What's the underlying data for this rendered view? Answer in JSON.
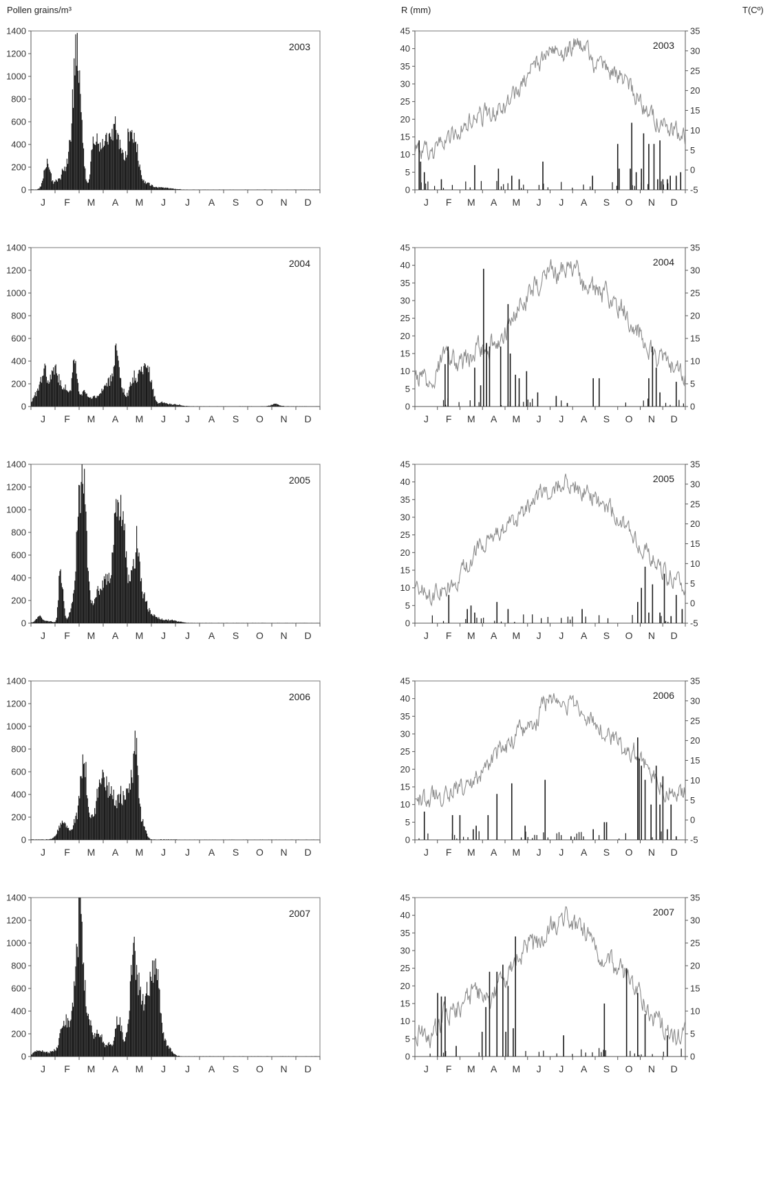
{
  "headers": {
    "pollen_axis": "Pollen grains/m³",
    "rain_axis": "R (mm)",
    "temp_axis": "T(Cº)"
  },
  "colors": {
    "bars": "#1a1a1a",
    "temperature_line": "#8c8c8c",
    "axis": "#555555"
  },
  "chart_data": [
    {
      "type": "bar",
      "panel": "pollen",
      "year": "2003",
      "ylabel": "Pollen grains/m³",
      "ylim": [
        0,
        1400
      ],
      "yticks": [
        0,
        200,
        400,
        600,
        800,
        1000,
        1200,
        1400
      ],
      "months": [
        "J",
        "F",
        "M",
        "A",
        "M",
        "J",
        "J",
        "A",
        "S",
        "O",
        "N",
        "D"
      ],
      "peaks": [
        {
          "day": 20,
          "value": 300,
          "width": 4
        },
        {
          "day": 32,
          "value": 90,
          "width": 3
        },
        {
          "day": 40,
          "value": 180,
          "width": 3
        },
        {
          "day": 50,
          "value": 500,
          "width": 4
        },
        {
          "day": 56,
          "value": 1050,
          "width": 3
        },
        {
          "day": 60,
          "value": 780,
          "width": 3
        },
        {
          "day": 64,
          "value": 400,
          "width": 3
        },
        {
          "day": 80,
          "value": 580,
          "width": 4
        },
        {
          "day": 88,
          "value": 350,
          "width": 3
        },
        {
          "day": 96,
          "value": 490,
          "width": 4
        },
        {
          "day": 106,
          "value": 640,
          "width": 4
        },
        {
          "day": 114,
          "value": 300,
          "width": 3
        },
        {
          "day": 124,
          "value": 580,
          "width": 4
        },
        {
          "day": 132,
          "value": 380,
          "width": 4
        },
        {
          "day": 142,
          "value": 70,
          "width": 8
        },
        {
          "day": 165,
          "value": 20,
          "width": 12
        }
      ]
    },
    {
      "type": "bar",
      "panel": "pollen",
      "year": "2004",
      "ylabel": "Pollen grains/m³",
      "ylim": [
        0,
        1400
      ],
      "yticks": [
        0,
        200,
        400,
        600,
        800,
        1000,
        1200,
        1400
      ],
      "months": [
        "J",
        "F",
        "M",
        "A",
        "M",
        "J",
        "J",
        "A",
        "S",
        "O",
        "N",
        "D"
      ],
      "peaks": [
        {
          "day": 6,
          "value": 120,
          "width": 4
        },
        {
          "day": 16,
          "value": 360,
          "width": 4
        },
        {
          "day": 30,
          "value": 390,
          "width": 6
        },
        {
          "day": 44,
          "value": 180,
          "width": 4
        },
        {
          "day": 55,
          "value": 510,
          "width": 3
        },
        {
          "day": 66,
          "value": 150,
          "width": 5
        },
        {
          "day": 78,
          "value": 80,
          "width": 4
        },
        {
          "day": 90,
          "value": 150,
          "width": 5
        },
        {
          "day": 100,
          "value": 240,
          "width": 5
        },
        {
          "day": 108,
          "value": 620,
          "width": 3
        },
        {
          "day": 116,
          "value": 150,
          "width": 4
        },
        {
          "day": 128,
          "value": 250,
          "width": 4
        },
        {
          "day": 140,
          "value": 380,
          "width": 6
        },
        {
          "day": 150,
          "value": 230,
          "width": 4
        },
        {
          "day": 165,
          "value": 40,
          "width": 5
        },
        {
          "day": 180,
          "value": 20,
          "width": 8
        },
        {
          "day": 308,
          "value": 25,
          "width": 5
        }
      ]
    },
    {
      "type": "bar",
      "panel": "pollen",
      "year": "2005",
      "ylabel": "Pollen grains/m³",
      "ylim": [
        0,
        1400
      ],
      "yticks": [
        0,
        200,
        400,
        600,
        800,
        1000,
        1200,
        1400
      ],
      "months": [
        "J",
        "F",
        "M",
        "A",
        "M",
        "J",
        "J",
        "A",
        "S",
        "O",
        "N",
        "D"
      ],
      "peaks": [
        {
          "day": 10,
          "value": 70,
          "width": 4
        },
        {
          "day": 22,
          "value": 20,
          "width": 4
        },
        {
          "day": 36,
          "value": 480,
          "width": 2
        },
        {
          "day": 40,
          "value": 250,
          "width": 2
        },
        {
          "day": 50,
          "value": 120,
          "width": 3
        },
        {
          "day": 60,
          "value": 1050,
          "width": 4
        },
        {
          "day": 66,
          "value": 1260,
          "width": 3
        },
        {
          "day": 72,
          "value": 300,
          "width": 4
        },
        {
          "day": 84,
          "value": 280,
          "width": 4
        },
        {
          "day": 92,
          "value": 380,
          "width": 4
        },
        {
          "day": 100,
          "value": 320,
          "width": 4
        },
        {
          "day": 108,
          "value": 1320,
          "width": 4
        },
        {
          "day": 116,
          "value": 960,
          "width": 3
        },
        {
          "day": 122,
          "value": 300,
          "width": 3
        },
        {
          "day": 128,
          "value": 390,
          "width": 3
        },
        {
          "day": 134,
          "value": 800,
          "width": 3
        },
        {
          "day": 142,
          "value": 250,
          "width": 4
        },
        {
          "day": 152,
          "value": 80,
          "width": 8
        },
        {
          "day": 175,
          "value": 30,
          "width": 10
        }
      ]
    },
    {
      "type": "bar",
      "panel": "pollen",
      "year": "2006",
      "ylabel": "Pollen grains/m³",
      "ylim": [
        0,
        1400
      ],
      "yticks": [
        0,
        200,
        400,
        600,
        800,
        1000,
        1200,
        1400
      ],
      "months": [
        "J",
        "F",
        "M",
        "A",
        "M",
        "J",
        "J",
        "A",
        "S",
        "O",
        "N",
        "D"
      ],
      "peaks": [
        {
          "day": 40,
          "value": 180,
          "width": 6
        },
        {
          "day": 56,
          "value": 180,
          "width": 4
        },
        {
          "day": 66,
          "value": 860,
          "width": 4
        },
        {
          "day": 76,
          "value": 200,
          "width": 4
        },
        {
          "day": 86,
          "value": 500,
          "width": 4
        },
        {
          "day": 94,
          "value": 450,
          "width": 5
        },
        {
          "day": 104,
          "value": 400,
          "width": 5
        },
        {
          "day": 114,
          "value": 390,
          "width": 4
        },
        {
          "day": 124,
          "value": 600,
          "width": 4
        },
        {
          "day": 132,
          "value": 940,
          "width": 3
        },
        {
          "day": 140,
          "value": 180,
          "width": 4
        }
      ]
    },
    {
      "type": "bar",
      "panel": "pollen",
      "year": "2007",
      "ylabel": "Pollen grains/m³",
      "ylim": [
        0,
        1400
      ],
      "yticks": [
        0,
        200,
        400,
        600,
        800,
        1000,
        1200,
        1400
      ],
      "months": [
        "J",
        "F",
        "M",
        "A",
        "M",
        "J",
        "J",
        "A",
        "S",
        "O",
        "N",
        "D"
      ],
      "peaks": [
        {
          "day": 6,
          "value": 60,
          "width": 4
        },
        {
          "day": 16,
          "value": 50,
          "width": 4
        },
        {
          "day": 28,
          "value": 60,
          "width": 4
        },
        {
          "day": 40,
          "value": 350,
          "width": 4
        },
        {
          "day": 46,
          "value": 220,
          "width": 3
        },
        {
          "day": 56,
          "value": 780,
          "width": 4
        },
        {
          "day": 62,
          "value": 1170,
          "width": 3
        },
        {
          "day": 68,
          "value": 500,
          "width": 4
        },
        {
          "day": 76,
          "value": 220,
          "width": 4
        },
        {
          "day": 86,
          "value": 250,
          "width": 4
        },
        {
          "day": 98,
          "value": 120,
          "width": 4
        },
        {
          "day": 110,
          "value": 400,
          "width": 4
        },
        {
          "day": 122,
          "value": 220,
          "width": 4
        },
        {
          "day": 128,
          "value": 880,
          "width": 3
        },
        {
          "day": 134,
          "value": 700,
          "width": 4
        },
        {
          "day": 142,
          "value": 300,
          "width": 4
        },
        {
          "day": 152,
          "value": 840,
          "width": 6
        },
        {
          "day": 160,
          "value": 400,
          "width": 4
        },
        {
          "day": 170,
          "value": 120,
          "width": 6
        }
      ]
    },
    {
      "type": "bar",
      "panel": "weather",
      "year": "2003",
      "ylabel": "R (mm)",
      "ylim": [
        0,
        45
      ],
      "yticks": [
        0,
        5,
        10,
        15,
        20,
        25,
        30,
        35,
        40,
        45
      ],
      "y2label": "T(Cº)",
      "y2lim": [
        -5,
        35
      ],
      "y2ticks": [
        -5,
        0,
        5,
        10,
        15,
        20,
        25,
        30,
        35
      ],
      "months": [
        "J",
        "F",
        "M",
        "A",
        "M",
        "J",
        "J",
        "A",
        "S",
        "O",
        "N",
        "D"
      ],
      "rain_days": [
        5,
        7,
        12,
        35,
        80,
        112,
        130,
        140,
        172,
        239,
        273,
        275,
        290,
        292,
        298,
        305,
        308,
        315,
        322,
        327,
        330,
        334,
        340,
        344,
        352,
        358
      ],
      "rain_values": [
        14,
        8,
        5,
        3,
        7,
        6,
        4,
        3,
        8,
        4,
        13,
        6,
        6,
        19,
        5,
        6,
        16,
        13,
        13,
        3,
        14,
        3,
        3,
        4,
        4,
        5
      ],
      "temp_anchor_days": [
        0,
        20,
        40,
        60,
        80,
        100,
        120,
        140,
        160,
        180,
        200,
        215,
        225,
        240,
        260,
        280,
        300,
        320,
        340,
        364
      ],
      "temp_anchor_values": [
        6,
        3,
        8,
        10,
        13,
        14,
        16,
        20,
        26,
        30,
        29,
        32,
        31,
        27,
        25,
        23,
        18,
        14,
        11,
        8
      ]
    },
    {
      "type": "bar",
      "panel": "weather",
      "year": "2004",
      "ylabel": "R (mm)",
      "ylim": [
        0,
        45
      ],
      "yticks": [
        0,
        5,
        10,
        15,
        20,
        25,
        30,
        35,
        40,
        45
      ],
      "y2label": "T(Cº)",
      "y2lim": [
        0,
        35
      ],
      "y2ticks": [
        0,
        5,
        10,
        15,
        20,
        25,
        30,
        35
      ],
      "months": [
        "J",
        "F",
        "M",
        "A",
        "M",
        "J",
        "J",
        "A",
        "S",
        "O",
        "N",
        "D"
      ],
      "rain_days": [
        40,
        44,
        80,
        88,
        92,
        96,
        100,
        115,
        125,
        128,
        135,
        140,
        150,
        165,
        190,
        205,
        240,
        248,
        315,
        320,
        325,
        330,
        352
      ],
      "rain_values": [
        12,
        17,
        11,
        6,
        39,
        18,
        17,
        17,
        29,
        15,
        9,
        8,
        10,
        4,
        3,
        1,
        8,
        8,
        8,
        17,
        11,
        4,
        7
      ],
      "temp_anchor_days": [
        0,
        20,
        40,
        60,
        80,
        100,
        120,
        140,
        160,
        180,
        200,
        215,
        225,
        240,
        260,
        280,
        300,
        320,
        340,
        364
      ],
      "temp_anchor_values": [
        8,
        5,
        11,
        9,
        12,
        13,
        17,
        22,
        26,
        30,
        29,
        31,
        27,
        26,
        24,
        22,
        17,
        11,
        9,
        7
      ]
    },
    {
      "type": "bar",
      "panel": "weather",
      "year": "2005",
      "ylabel": "R (mm)",
      "ylim": [
        0,
        45
      ],
      "yticks": [
        0,
        5,
        10,
        15,
        20,
        25,
        30,
        35,
        40,
        45
      ],
      "y2label": "T(Cº)",
      "y2lim": [
        -5,
        35
      ],
      "y2ticks": [
        -5,
        0,
        5,
        10,
        15,
        20,
        25,
        30,
        35
      ],
      "months": [
        "J",
        "F",
        "M",
        "A",
        "M",
        "J",
        "J",
        "A",
        "S",
        "O",
        "N",
        "D"
      ],
      "rain_days": [
        45,
        70,
        75,
        80,
        110,
        125,
        225,
        300,
        305,
        310,
        315,
        320,
        330,
        336,
        345,
        352,
        360
      ],
      "rain_values": [
        8,
        4,
        5,
        3,
        6,
        4,
        4,
        6,
        10,
        16,
        3,
        11,
        3,
        14,
        2,
        8,
        4
      ],
      "temp_anchor_days": [
        0,
        20,
        40,
        60,
        80,
        100,
        120,
        140,
        160,
        180,
        200,
        215,
        225,
        240,
        260,
        280,
        300,
        320,
        340,
        364
      ],
      "temp_anchor_values": [
        5,
        2,
        3,
        7,
        12,
        16,
        18,
        22,
        26,
        29,
        31,
        30,
        29,
        27,
        24,
        20,
        16,
        11,
        7,
        5
      ]
    },
    {
      "type": "bar",
      "panel": "weather",
      "year": "2006",
      "ylabel": "R (mm)",
      "ylim": [
        0,
        45
      ],
      "yticks": [
        0,
        5,
        10,
        15,
        20,
        25,
        30,
        35,
        40,
        45
      ],
      "y2label": "T(Cº)",
      "y2lim": [
        -5,
        35
      ],
      "y2ticks": [
        -5,
        0,
        5,
        10,
        15,
        20,
        25,
        30,
        35
      ],
      "months": [
        "J",
        "F",
        "M",
        "A",
        "M",
        "J",
        "J",
        "A",
        "S",
        "O",
        "N",
        "D"
      ],
      "rain_days": [
        12,
        50,
        60,
        78,
        82,
        98,
        110,
        130,
        148,
        175,
        210,
        240,
        255,
        258,
        300,
        302,
        305,
        310,
        318,
        325,
        330,
        334,
        340,
        345,
        352
      ],
      "rain_values": [
        8,
        7,
        7,
        3,
        4,
        7,
        13,
        16,
        4,
        17,
        1,
        3,
        5,
        5,
        29,
        23,
        21,
        17,
        10,
        21,
        10,
        18,
        3,
        10,
        1
      ],
      "temp_anchor_days": [
        0,
        20,
        40,
        60,
        80,
        100,
        120,
        140,
        160,
        180,
        200,
        215,
        225,
        240,
        260,
        280,
        300,
        320,
        340,
        364
      ],
      "temp_anchor_values": [
        6,
        5,
        7,
        8,
        10,
        14,
        18,
        22,
        24,
        31,
        29,
        29,
        28,
        25,
        21,
        18,
        17,
        11,
        8,
        7
      ]
    },
    {
      "type": "bar",
      "panel": "weather",
      "year": "2007",
      "ylabel": "R (mm)",
      "ylim": [
        0,
        45
      ],
      "yticks": [
        0,
        5,
        10,
        15,
        20,
        25,
        30,
        35,
        40,
        45
      ],
      "y2label": "T(Cº)",
      "y2lim": [
        0,
        35
      ],
      "y2ticks": [
        0,
        5,
        10,
        15,
        20,
        25,
        30,
        35
      ],
      "months": [
        "J",
        "F",
        "M",
        "A",
        "M",
        "J",
        "J",
        "A",
        "S",
        "O",
        "N",
        "D"
      ],
      "rain_days": [
        30,
        35,
        40,
        55,
        90,
        95,
        100,
        110,
        118,
        122,
        125,
        132,
        135,
        200,
        255,
        285,
        300,
        310,
        340
      ],
      "rain_values": [
        18,
        17,
        17,
        3,
        7,
        14,
        24,
        24,
        26,
        7,
        20,
        8,
        34,
        6,
        15,
        25,
        18,
        12,
        6
      ],
      "temp_anchor_days": [
        0,
        20,
        40,
        60,
        80,
        100,
        120,
        140,
        160,
        180,
        200,
        215,
        225,
        240,
        260,
        280,
        300,
        320,
        340,
        364
      ],
      "temp_anchor_values": [
        5,
        4,
        9,
        11,
        14,
        13,
        17,
        23,
        24,
        28,
        31,
        28,
        29,
        24,
        22,
        18,
        14,
        9,
        6,
        5
      ]
    }
  ]
}
